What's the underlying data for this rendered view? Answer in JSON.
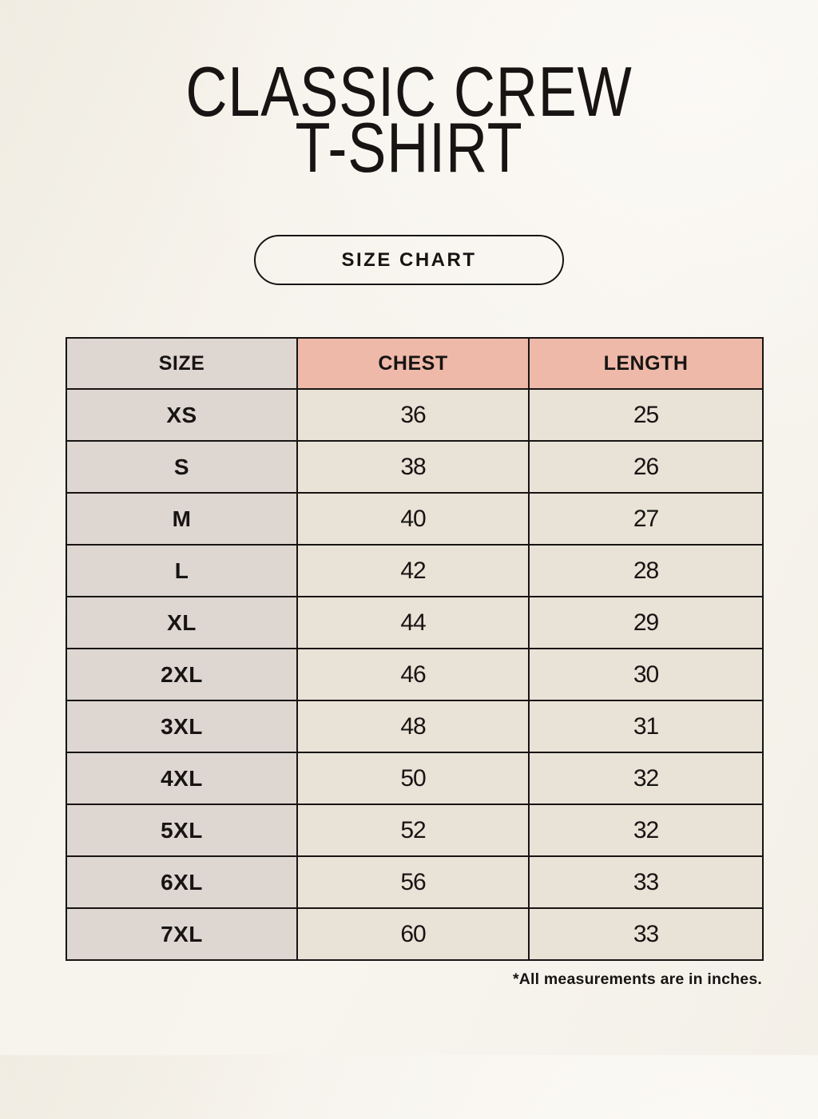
{
  "header": {
    "title_line1": "CLASSIC CREW",
    "title_line2": "T-SHIRT",
    "size_chart_button": "SIZE CHART"
  },
  "table": {
    "columns": [
      "SIZE",
      "CHEST",
      "LENGTH"
    ],
    "rows": [
      {
        "size": "XS",
        "chest": "36",
        "length": "25"
      },
      {
        "size": "S",
        "chest": "38",
        "length": "26"
      },
      {
        "size": "M",
        "chest": "40",
        "length": "27"
      },
      {
        "size": "L",
        "chest": "42",
        "length": "28"
      },
      {
        "size": "XL",
        "chest": "44",
        "length": "29"
      },
      {
        "size": "2XL",
        "chest": "46",
        "length": "30"
      },
      {
        "size": "3XL",
        "chest": "48",
        "length": "31"
      },
      {
        "size": "4XL",
        "chest": "50",
        "length": "32"
      },
      {
        "size": "5XL",
        "chest": "52",
        "length": "32"
      },
      {
        "size": "6XL",
        "chest": "56",
        "length": "33"
      },
      {
        "size": "7XL",
        "chest": "60",
        "length": "33"
      }
    ]
  },
  "footnote": "*All measurements are in inches.",
  "colors": {
    "background": "#f6f3ec",
    "size_column_bg": "#ddd6d1",
    "measurement_header_bg": "#eeb9a9",
    "data_cell_bg": "#e9e2d7",
    "table_border": "#171413",
    "text": "#171413"
  },
  "chart_data": {
    "type": "table",
    "title": "CLASSIC CREW T-SHIRT",
    "subtitle": "SIZE CHART",
    "columns": [
      "SIZE",
      "CHEST",
      "LENGTH"
    ],
    "rows": [
      [
        "XS",
        36,
        25
      ],
      [
        "S",
        38,
        26
      ],
      [
        "M",
        40,
        27
      ],
      [
        "L",
        42,
        28
      ],
      [
        "XL",
        44,
        29
      ],
      [
        "2XL",
        46,
        30
      ],
      [
        "3XL",
        48,
        31
      ],
      [
        "4XL",
        50,
        32
      ],
      [
        "5XL",
        52,
        32
      ],
      [
        "6XL",
        56,
        33
      ],
      [
        "7XL",
        60,
        33
      ]
    ],
    "units": "inches",
    "note": "*All measurements are in inches."
  }
}
